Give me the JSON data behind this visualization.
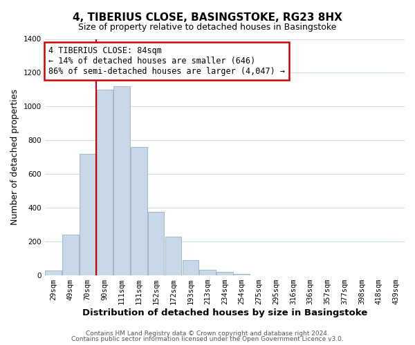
{
  "title": "4, TIBERIUS CLOSE, BASINGSTOKE, RG23 8HX",
  "subtitle": "Size of property relative to detached houses in Basingstoke",
  "xlabel": "Distribution of detached houses by size in Basingstoke",
  "ylabel": "Number of detached properties",
  "bar_labels": [
    "29sqm",
    "49sqm",
    "70sqm",
    "90sqm",
    "111sqm",
    "131sqm",
    "152sqm",
    "172sqm",
    "193sqm",
    "213sqm",
    "234sqm",
    "254sqm",
    "275sqm",
    "295sqm",
    "316sqm",
    "336sqm",
    "357sqm",
    "377sqm",
    "398sqm",
    "418sqm",
    "439sqm"
  ],
  "bar_heights": [
    30,
    240,
    720,
    1100,
    1120,
    760,
    375,
    230,
    90,
    32,
    20,
    10,
    0,
    0,
    0,
    0,
    0,
    0,
    0,
    0,
    0
  ],
  "bar_color": "#c8d8e8",
  "bar_edge_color": "#a0b8cc",
  "vline_color": "#cc0000",
  "vline_pos": 2.5,
  "annotation_line1": "4 TIBERIUS CLOSE: 84sqm",
  "annotation_line2": "← 14% of detached houses are smaller (646)",
  "annotation_line3": "86% of semi-detached houses are larger (4,047) →",
  "annotation_box_color": "#ffffff",
  "annotation_box_edge": "#cc0000",
  "ylim": [
    0,
    1400
  ],
  "yticks": [
    0,
    200,
    400,
    600,
    800,
    1000,
    1200,
    1400
  ],
  "footer1": "Contains HM Land Registry data © Crown copyright and database right 2024.",
  "footer2": "Contains public sector information licensed under the Open Government Licence v3.0.",
  "bg_color": "#ffffff",
  "grid_color": "#d0dce8",
  "title_fontsize": 11,
  "subtitle_fontsize": 9,
  "ylabel_fontsize": 9,
  "xlabel_fontsize": 9.5,
  "tick_fontsize": 7.5,
  "annot_fontsize": 8.5,
  "footer_fontsize": 6.5
}
